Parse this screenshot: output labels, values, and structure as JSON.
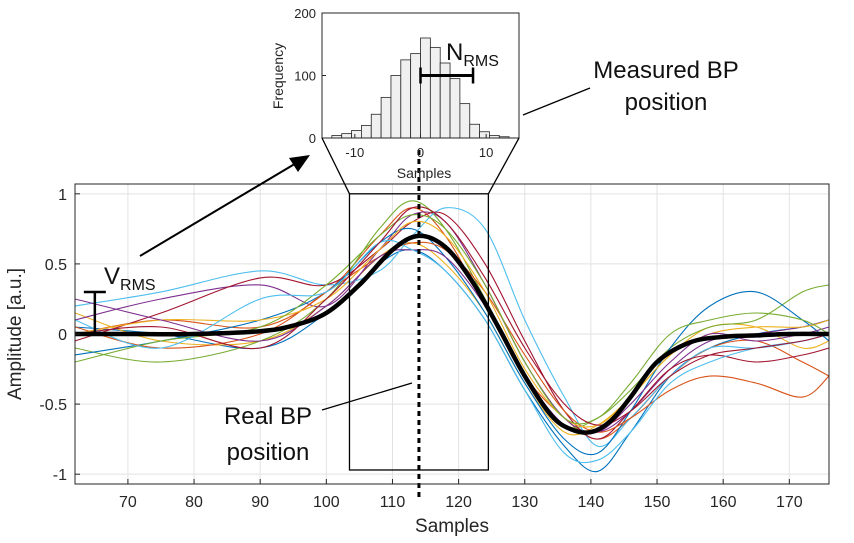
{
  "chart_data": [
    {
      "id": "main",
      "type": "line",
      "xlabel": "Samples",
      "ylabel": "Amplitude [a.u.]",
      "xlim": [
        62,
        176
      ],
      "ylim": [
        -1.07,
        1.07
      ],
      "xticks": [
        70,
        80,
        90,
        100,
        110,
        120,
        130,
        140,
        150,
        160,
        170
      ],
      "yticks": [
        -1,
        -0.5,
        0,
        0.5,
        1
      ],
      "grid": true,
      "mean_series": {
        "name": "Mean waveform",
        "color": "#000000",
        "x": [
          62,
          70,
          80,
          90,
          95,
          100,
          105,
          110,
          114,
          118,
          122,
          126,
          130,
          134,
          137,
          140,
          143,
          146,
          150,
          155,
          160,
          165,
          170,
          176
        ],
        "y": [
          0.0,
          0.0,
          0.0,
          0.02,
          0.06,
          0.15,
          0.35,
          0.6,
          0.7,
          0.62,
          0.38,
          0.05,
          -0.3,
          -0.58,
          -0.68,
          -0.7,
          -0.62,
          -0.45,
          -0.2,
          -0.06,
          -0.02,
          -0.01,
          0.0,
          0.0
        ]
      },
      "noisy_traces": [
        {
          "color": "#0072BD",
          "x": [
            62,
            75,
            90,
            100,
            108,
            113,
            118,
            124,
            130,
            136,
            141,
            146,
            152,
            158,
            165,
            172,
            176
          ],
          "y": [
            0.05,
            0.0,
            -0.1,
            0.15,
            0.5,
            0.6,
            0.45,
            0.1,
            -0.4,
            -0.8,
            -0.98,
            -0.7,
            -0.3,
            -0.1,
            0.0,
            0.05,
            0.1
          ]
        },
        {
          "color": "#D95319",
          "x": [
            62,
            75,
            90,
            100,
            108,
            113,
            118,
            124,
            130,
            136,
            141,
            146,
            152,
            158,
            165,
            172,
            176
          ],
          "y": [
            0.0,
            0.1,
            0.05,
            0.3,
            0.7,
            0.9,
            0.7,
            0.2,
            -0.3,
            -0.6,
            -0.75,
            -0.6,
            -0.3,
            -0.1,
            -0.05,
            -0.2,
            -0.3
          ]
        },
        {
          "color": "#EDB120",
          "x": [
            62,
            75,
            90,
            100,
            108,
            113,
            118,
            124,
            130,
            136,
            141,
            146,
            152,
            158,
            165,
            172,
            176
          ],
          "y": [
            0.15,
            -0.05,
            -0.05,
            0.2,
            0.55,
            0.65,
            0.5,
            0.15,
            -0.35,
            -0.7,
            -0.65,
            -0.45,
            -0.15,
            0.05,
            0.05,
            -0.1,
            -0.05
          ]
        },
        {
          "color": "#7E2F8E",
          "x": [
            62,
            75,
            90,
            100,
            108,
            113,
            118,
            124,
            130,
            136,
            141,
            146,
            152,
            158,
            165,
            172,
            176
          ],
          "y": [
            0.1,
            0.25,
            0.35,
            0.2,
            0.6,
            0.85,
            0.8,
            0.35,
            -0.2,
            -0.6,
            -0.7,
            -0.55,
            -0.25,
            -0.05,
            0.0,
            0.05,
            0.1
          ]
        },
        {
          "color": "#77AC30",
          "x": [
            62,
            75,
            90,
            100,
            108,
            113,
            118,
            124,
            130,
            136,
            141,
            146,
            152,
            158,
            165,
            172,
            176
          ],
          "y": [
            -0.1,
            -0.2,
            -0.05,
            0.25,
            0.75,
            0.95,
            0.75,
            0.25,
            -0.3,
            -0.65,
            -0.6,
            -0.4,
            -0.1,
            0.05,
            0.1,
            0.3,
            0.35
          ]
        },
        {
          "color": "#4DBEEE",
          "x": [
            62,
            75,
            90,
            100,
            108,
            113,
            118,
            124,
            130,
            136,
            141,
            146,
            152,
            158,
            165,
            172,
            176
          ],
          "y": [
            0.2,
            0.3,
            0.45,
            0.35,
            0.45,
            0.7,
            0.9,
            0.75,
            0.1,
            -0.45,
            -0.8,
            -0.6,
            -0.3,
            -0.1,
            -0.1,
            -0.05,
            0.0
          ]
        },
        {
          "color": "#A2142F",
          "x": [
            62,
            75,
            90,
            100,
            108,
            113,
            118,
            124,
            130,
            136,
            141,
            146,
            152,
            158,
            165,
            172,
            176
          ],
          "y": [
            -0.05,
            0.15,
            0.4,
            0.35,
            0.6,
            0.8,
            0.85,
            0.5,
            -0.05,
            -0.55,
            -0.75,
            -0.55,
            -0.25,
            -0.15,
            -0.2,
            -0.15,
            -0.1
          ]
        },
        {
          "color": "#0072BD",
          "x": [
            62,
            75,
            90,
            100,
            108,
            113,
            118,
            124,
            130,
            136,
            141,
            146,
            152,
            158,
            165,
            172,
            176
          ],
          "y": [
            -0.15,
            -0.05,
            0.1,
            0.3,
            0.65,
            0.75,
            0.55,
            0.15,
            -0.35,
            -0.75,
            -0.85,
            -0.55,
            -0.1,
            0.2,
            0.3,
            0.1,
            -0.05
          ]
        },
        {
          "color": "#D95319",
          "x": [
            62,
            75,
            90,
            100,
            108,
            113,
            118,
            124,
            130,
            136,
            141,
            146,
            152,
            158,
            165,
            172,
            176
          ],
          "y": [
            0.05,
            -0.1,
            0.0,
            0.3,
            0.55,
            0.65,
            0.6,
            0.3,
            -0.15,
            -0.55,
            -0.7,
            -0.6,
            -0.4,
            -0.3,
            -0.35,
            -0.45,
            -0.3
          ]
        },
        {
          "color": "#EDB120",
          "x": [
            62,
            75,
            90,
            100,
            108,
            113,
            118,
            124,
            130,
            136,
            141,
            146,
            152,
            158,
            165,
            172,
            176
          ],
          "y": [
            0.0,
            0.1,
            0.1,
            0.25,
            0.6,
            0.8,
            0.7,
            0.3,
            -0.25,
            -0.6,
            -0.65,
            -0.45,
            -0.15,
            0.0,
            0.05,
            0.05,
            0.1
          ]
        },
        {
          "color": "#7E2F8E",
          "x": [
            62,
            75,
            90,
            100,
            108,
            113,
            118,
            124,
            130,
            136,
            141,
            146,
            152,
            158,
            165,
            172,
            176
          ],
          "y": [
            0.25,
            0.1,
            -0.05,
            0.2,
            0.55,
            0.6,
            0.55,
            0.2,
            -0.3,
            -0.65,
            -0.7,
            -0.5,
            -0.2,
            0.0,
            -0.05,
            0.0,
            0.05
          ]
        },
        {
          "color": "#77AC30",
          "x": [
            62,
            75,
            90,
            100,
            108,
            113,
            118,
            124,
            130,
            136,
            141,
            146,
            152,
            158,
            165,
            172,
            176
          ],
          "y": [
            -0.2,
            -0.05,
            0.05,
            0.35,
            0.7,
            0.85,
            0.75,
            0.35,
            -0.2,
            -0.6,
            -0.6,
            -0.35,
            0.0,
            0.1,
            0.15,
            0.1,
            0.0
          ]
        },
        {
          "color": "#4DBEEE",
          "x": [
            62,
            75,
            90,
            100,
            108,
            113,
            118,
            124,
            130,
            136,
            141,
            146,
            152,
            158,
            165,
            172,
            176
          ],
          "y": [
            0.1,
            -0.1,
            0.25,
            0.3,
            0.65,
            0.6,
            0.45,
            0.1,
            -0.4,
            -0.85,
            -0.9,
            -0.7,
            -0.35,
            -0.2,
            -0.1,
            -0.05,
            0.0
          ]
        },
        {
          "color": "#A2142F",
          "x": [
            62,
            75,
            90,
            100,
            108,
            113,
            118,
            124,
            130,
            136,
            141,
            146,
            152,
            158,
            165,
            172,
            176
          ],
          "y": [
            0.0,
            0.05,
            -0.1,
            0.25,
            0.65,
            0.9,
            0.8,
            0.4,
            -0.1,
            -0.5,
            -0.65,
            -0.55,
            -0.3,
            -0.15,
            -0.1,
            -0.05,
            0.0
          ]
        }
      ]
    },
    {
      "id": "inset",
      "type": "bar",
      "title": "",
      "xlabel": "Samples",
      "ylabel": "Frequency",
      "xlim": [
        -15,
        15
      ],
      "ylim": [
        0,
        200
      ],
      "xticks": [
        -10,
        0,
        10
      ],
      "yticks": [
        0,
        100,
        200
      ],
      "bin_width": 1.5,
      "bin_centers": [
        -12.75,
        -11.25,
        -9.75,
        -8.25,
        -6.75,
        -5.25,
        -3.75,
        -2.25,
        -0.75,
        0.75,
        2.25,
        3.75,
        5.25,
        6.75,
        8.25,
        9.75,
        11.25,
        12.75
      ],
      "values": [
        4,
        7,
        12,
        20,
        38,
        65,
        100,
        125,
        135,
        160,
        145,
        120,
        95,
        55,
        22,
        10,
        4,
        2
      ]
    }
  ],
  "annotations": {
    "n_rms_main": "N",
    "n_rms_sub": "RMS",
    "v_rms_main": "V",
    "v_rms_sub": "RMS",
    "measured_line1": "Measured BP",
    "measured_line2": "position",
    "real_line1": "Real BP",
    "real_line2": "position"
  },
  "markers": {
    "bp_x": 114,
    "window_x": [
      103.5,
      124.5
    ],
    "window_y": [
      -0.97,
      1.0
    ],
    "vrms_x": 65,
    "vrms_y": [
      0,
      0.3
    ],
    "nrms_x": [
      0,
      8
    ],
    "nrms_y": 100
  }
}
